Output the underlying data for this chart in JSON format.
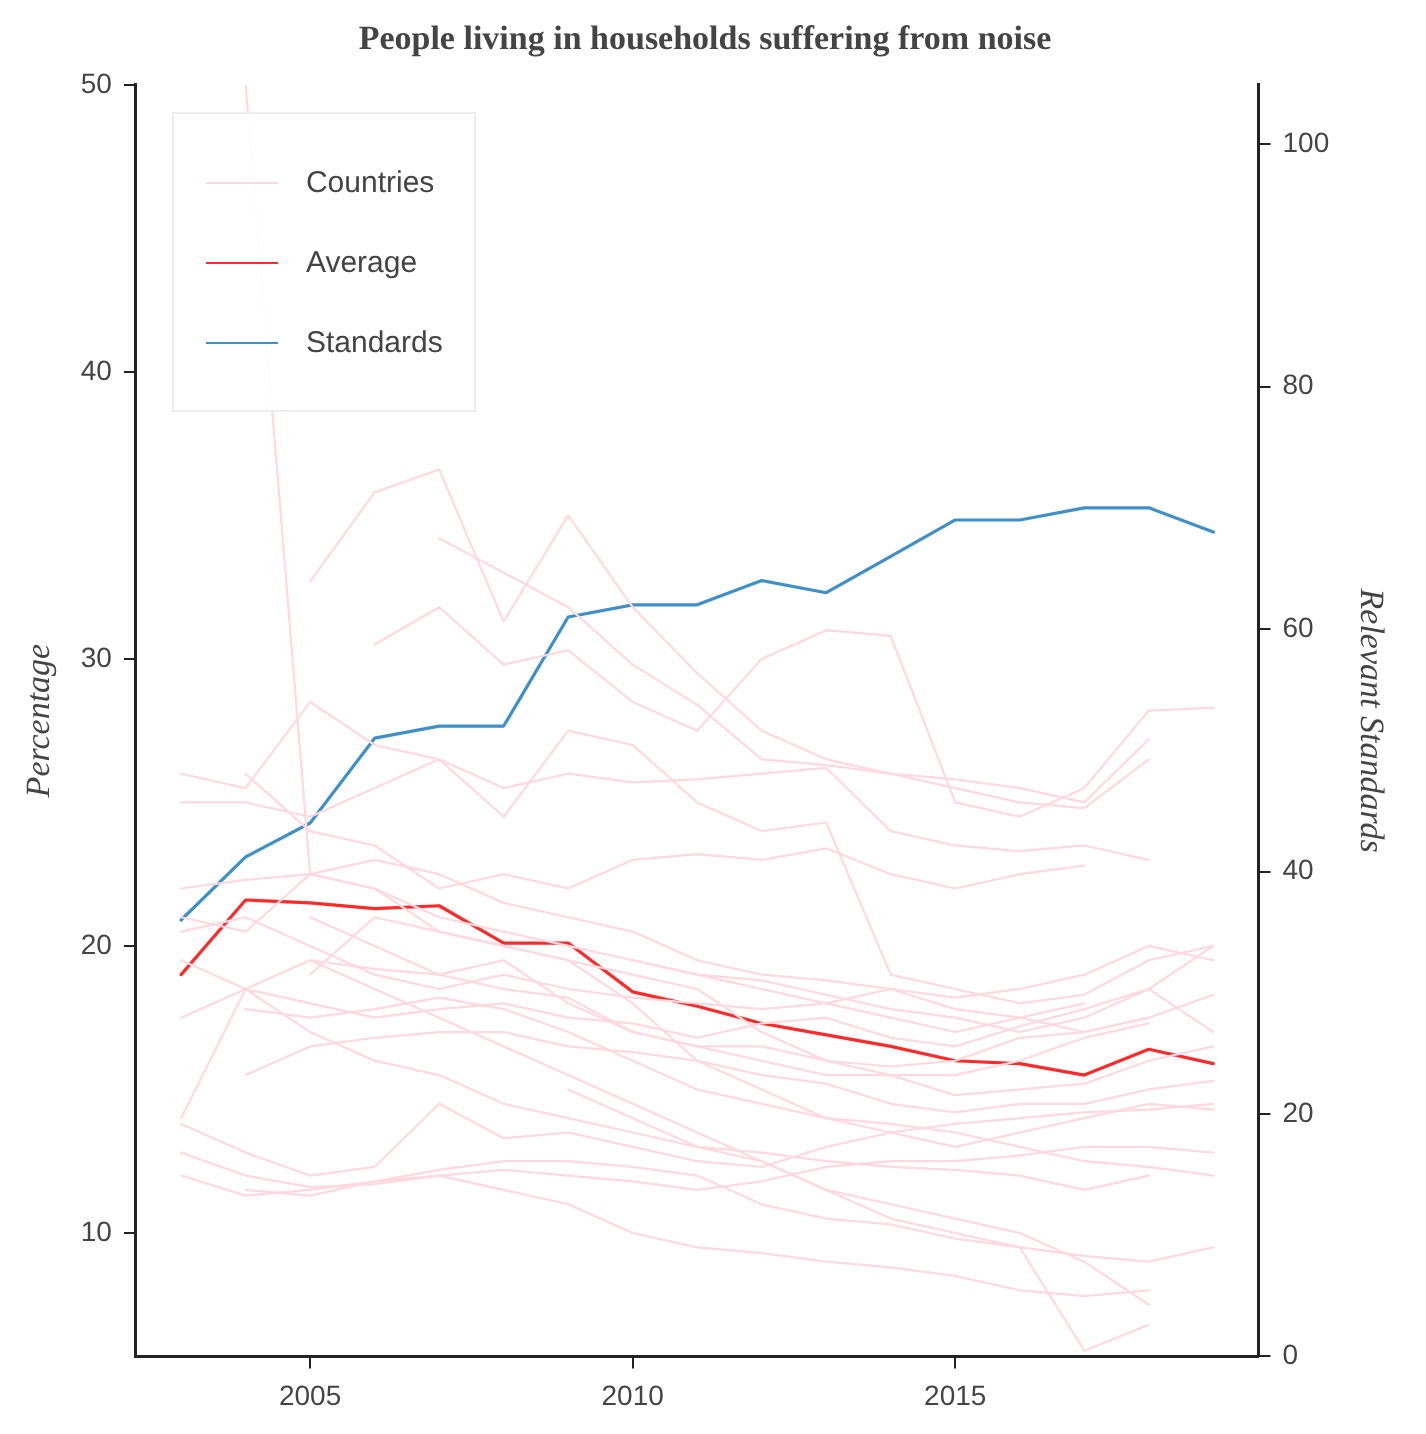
{
  "chart_data": {
    "type": "line",
    "title": "People living in households suffering from noise",
    "ylabel": "Percentage",
    "y2label": "Relevant Standards",
    "x": [
      2003,
      2004,
      2005,
      2006,
      2007,
      2008,
      2009,
      2010,
      2011,
      2012,
      2013,
      2014,
      2015,
      2016,
      2017,
      2018,
      2019
    ],
    "xlim": [
      2002.3,
      2019.7
    ],
    "xticks": [
      2005,
      2010,
      2015
    ],
    "ylim": [
      5.7,
      50
    ],
    "yticks": [
      10,
      20,
      30,
      40,
      50
    ],
    "y2lim": [
      0,
      104.9
    ],
    "y2ticks": [
      0,
      20,
      40,
      60,
      80,
      100
    ],
    "grid": false,
    "legend": "top left",
    "line_style": "solid",
    "marker": "none",
    "series": [
      {
        "name": "Countries",
        "color": "#ffd9df",
        "values": [
          null,
          50,
          22.5,
          22,
          21,
          20.5,
          20,
          19.5,
          19,
          18.5,
          18,
          17.5,
          17,
          17.5,
          18,
          null,
          null
        ]
      },
      {
        "color": "#ffd9df",
        "values": [
          null,
          null,
          32.7,
          35.8,
          36.6,
          31.3,
          35,
          31.8,
          29.5,
          27.5,
          26.5,
          26,
          25.5,
          25,
          24.8,
          26.5,
          null
        ]
      },
      {
        "color": "#ffd9df",
        "values": [
          null,
          null,
          null,
          30.5,
          31.8,
          29.8,
          30.3,
          28.5,
          27.5,
          30,
          31,
          30.8,
          25,
          24.5,
          25.5,
          28.2,
          28.3
        ]
      },
      {
        "color": "#ffd9df",
        "values": [
          null,
          null,
          null,
          null,
          34.2,
          33,
          31.8,
          29.8,
          28.4,
          26.5,
          26.3,
          26,
          25.8,
          25.5,
          25,
          27.2,
          null
        ]
      },
      {
        "color": "#ffd9df",
        "values": [
          26,
          25.5,
          28.5,
          27,
          26.5,
          25.5,
          26,
          25.7,
          25.8,
          26,
          26.2,
          24,
          23.5,
          23.3,
          23.5,
          23,
          null
        ]
      },
      {
        "color": "#ffd9df",
        "values": [
          25,
          25,
          24.5,
          25.5,
          26.5,
          24.5,
          27.5,
          27,
          25,
          24,
          24.3,
          19,
          18.5,
          18,
          18.3,
          19.5,
          20
        ]
      },
      {
        "color": "#ffd9df",
        "values": [
          null,
          26,
          24,
          23.5,
          22,
          22.5,
          22,
          23,
          23.2,
          23,
          23.4,
          22.5,
          22,
          22.5,
          22.8,
          null,
          null
        ]
      },
      {
        "color": "#ffd9df",
        "values": [
          21,
          20.5,
          22.5,
          23,
          22.5,
          21.5,
          21,
          20.5,
          19.5,
          19,
          18.8,
          18.5,
          17.8,
          17.5,
          17,
          17.5,
          18.3
        ]
      },
      {
        "color": "#ffd9df",
        "values": [
          20.5,
          21,
          20,
          19,
          18.5,
          19,
          18.5,
          18.2,
          18,
          17.8,
          18,
          18.5,
          18.2,
          18.5,
          19,
          20,
          19.5
        ]
      },
      {
        "color": "#ffd9df",
        "values": [
          19.5,
          18.5,
          18,
          17.5,
          17.8,
          18,
          17.5,
          17.3,
          16.8,
          17.3,
          17.5,
          16.8,
          16.5,
          17.2,
          17.8,
          18.5,
          17
        ]
      },
      {
        "color": "#ffd9df",
        "values": [
          14,
          18.5,
          19.5,
          19.2,
          19,
          18.5,
          18.2,
          17,
          16.5,
          16,
          15.5,
          15.5,
          14.8,
          15,
          15.2,
          16,
          16.5
        ]
      },
      {
        "color": "#ffd9df",
        "values": [
          null,
          15.5,
          16.5,
          16.8,
          17,
          17,
          16.5,
          16.3,
          16,
          15.5,
          15.2,
          14.5,
          14.2,
          14.5,
          14.5,
          15,
          15.3
        ]
      },
      {
        "color": "#ffd9df",
        "values": [
          13.8,
          12.8,
          12,
          12.3,
          14.5,
          13.3,
          13.5,
          13,
          12.5,
          12.3,
          13,
          13.5,
          13.8,
          14,
          14.2,
          14.3,
          14.5
        ]
      },
      {
        "color": "#ffd9df",
        "values": [
          12.8,
          12,
          11.6,
          11.7,
          12,
          12.2,
          12,
          11.8,
          11.5,
          11.8,
          12.3,
          12.5,
          12.5,
          12.7,
          13,
          13,
          12.8
        ]
      },
      {
        "color": "#ffd9df",
        "values": [
          null,
          11.5,
          11.3,
          11.8,
          12.2,
          12.5,
          12.5,
          12.3,
          12,
          11,
          10.5,
          10.3,
          9.8,
          9.5,
          9.2,
          9,
          9.5
        ]
      },
      {
        "color": "#ffd9df",
        "values": [
          12,
          11.3,
          11.5,
          11.8,
          12,
          11.5,
          11,
          10,
          9.5,
          9.3,
          9,
          8.8,
          8.5,
          8,
          7.8,
          8,
          null
        ]
      },
      {
        "color": "#ffd9df",
        "values": [
          null,
          null,
          19.5,
          18.5,
          17.5,
          16.5,
          15.5,
          14.5,
          13.5,
          12.5,
          11.5,
          11,
          10.5,
          10,
          9,
          7.5,
          null
        ]
      },
      {
        "color": "#ffd9df",
        "values": [
          null,
          null,
          null,
          null,
          null,
          null,
          15,
          14,
          13,
          12.5,
          11.5,
          10.5,
          10,
          9.5,
          5.9,
          6.8,
          null
        ]
      },
      {
        "color": "#ffd9df",
        "values": [
          22,
          22.3,
          22.5,
          22,
          20.5,
          20,
          19.5,
          19,
          18.5,
          17,
          16,
          15.8,
          16,
          16.8,
          17,
          17.5,
          null
        ]
      },
      {
        "color": "#ffd9df",
        "values": [
          null,
          null,
          19,
          21,
          20.5,
          20,
          19.5,
          18,
          16,
          15,
          14,
          13.5,
          13,
          13.5,
          14,
          14.5,
          14.3
        ]
      },
      {
        "color": "#ffd9df",
        "values": [
          null,
          null,
          21,
          20,
          19,
          19.5,
          18,
          17,
          16.5,
          16.5,
          16,
          15.5,
          15.5,
          16,
          16.8,
          17.3,
          null
        ]
      },
      {
        "color": "#ffd9df",
        "values": [
          17.5,
          18.5,
          17,
          16,
          15.5,
          14.5,
          14,
          13.5,
          13,
          12.8,
          12.5,
          12.3,
          12.2,
          12,
          11.5,
          12,
          null
        ]
      },
      {
        "color": "#ffd9df",
        "values": [
          null,
          17.8,
          17.5,
          17.8,
          18.2,
          17.8,
          17,
          16,
          15,
          14.5,
          14,
          13.8,
          13.5,
          13,
          12.5,
          12.3,
          12
        ]
      },
      {
        "color": "#ffd9df",
        "values": [
          null,
          null,
          null,
          null,
          null,
          null,
          null,
          19.5,
          19,
          18.8,
          18.3,
          17.8,
          17.5,
          17,
          17.5,
          18.5,
          20
        ]
      },
      {
        "name": "Average",
        "color": "#ff2b2b",
        "values": [
          19,
          21.6,
          21.5,
          21.3,
          21.4,
          20.1,
          20.1,
          18.4,
          17.9,
          17.3,
          16.9,
          16.5,
          16,
          15.9,
          15.5,
          16.4,
          15.9
        ]
      },
      {
        "name": "Standards",
        "color": "#3f8fc8",
        "axis": "y2",
        "values": [
          36,
          41.2,
          44,
          51,
          52,
          52,
          61,
          62,
          62,
          64,
          63,
          66,
          69,
          69,
          70,
          70,
          68
        ]
      }
    ]
  }
}
